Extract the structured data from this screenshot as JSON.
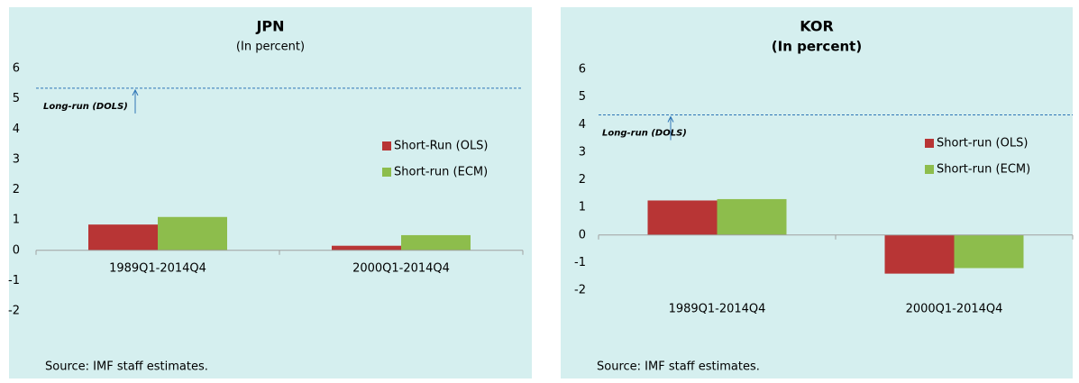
{
  "chart_data": [
    {
      "type": "bar",
      "title": "JPN",
      "subtitle": "(In percent)",
      "categories": [
        "1989Q1-2014Q4",
        "2000Q1-2014Q4"
      ],
      "series": [
        {
          "name": "Short-Run (OLS)",
          "color": "#b83535",
          "values": [
            0.85,
            0.15
          ]
        },
        {
          "name": "Short-run (ECM)",
          "color": "#8dbd4c",
          "values": [
            1.1,
            0.5
          ]
        }
      ],
      "long_run": {
        "label": "Long-run (DOLS)",
        "value": 5.35
      },
      "ylim": [
        -2,
        6
      ],
      "yticks": [
        -2,
        -1,
        0,
        1,
        2,
        3,
        4,
        5,
        6
      ],
      "source": "Source: IMF staff estimates."
    },
    {
      "type": "bar",
      "title": "KOR",
      "subtitle": "(In percent)",
      "categories": [
        "1989Q1-2014Q4",
        "2000Q1-2014Q4"
      ],
      "series": [
        {
          "name": "Short-run (OLS)",
          "color": "#b83535",
          "values": [
            1.25,
            -1.4
          ]
        },
        {
          "name": "Short-run (ECM)",
          "color": "#8dbd4c",
          "values": [
            1.3,
            -1.2
          ]
        }
      ],
      "long_run": {
        "label": "Long-run (DOLS)",
        "value": 4.35
      },
      "ylim": [
        -2,
        6
      ],
      "yticks": [
        -2,
        -1,
        0,
        1,
        2,
        3,
        4,
        5,
        6
      ],
      "source": "Source: IMF staff estimates."
    }
  ]
}
